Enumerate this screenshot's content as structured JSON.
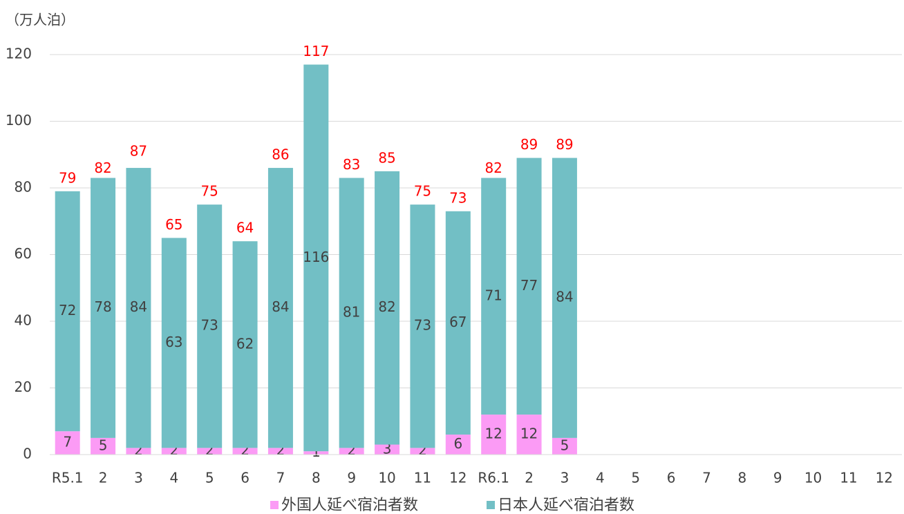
{
  "chart_data": {
    "type": "bar",
    "stacked": true,
    "y_axis_label": "（万人泊）",
    "categories": [
      "R5.1",
      "2",
      "3",
      "4",
      "5",
      "6",
      "7",
      "8",
      "9",
      "10",
      "11",
      "12",
      "R6.1",
      "2",
      "3",
      "4",
      "5",
      "6",
      "7",
      "8",
      "9",
      "10",
      "11",
      "12"
    ],
    "series": [
      {
        "name": "外国人延べ宿泊者数",
        "color": "#fb9bf5",
        "values": [
          7,
          5,
          2,
          2,
          2,
          2,
          2,
          1,
          2,
          3,
          2,
          6,
          12,
          12,
          5,
          null,
          null,
          null,
          null,
          null,
          null,
          null,
          null,
          null
        ]
      },
      {
        "name": "日本人延べ宿泊者数",
        "color": "#72bfc5",
        "values": [
          72,
          78,
          84,
          63,
          73,
          62,
          84,
          116,
          81,
          82,
          73,
          67,
          71,
          77,
          84,
          null,
          null,
          null,
          null,
          null,
          null,
          null,
          null,
          null
        ]
      }
    ],
    "totals": [
      79,
      82,
      87,
      65,
      75,
      64,
      86,
      117,
      83,
      85,
      75,
      73,
      82,
      89,
      89,
      null,
      null,
      null,
      null,
      null,
      null,
      null,
      null,
      null
    ],
    "totals_color": "#ff0000",
    "ylim": [
      0,
      120
    ],
    "yticks": [
      0,
      20,
      40,
      60,
      80,
      100,
      120
    ],
    "grid": true,
    "legend": "bottom"
  }
}
